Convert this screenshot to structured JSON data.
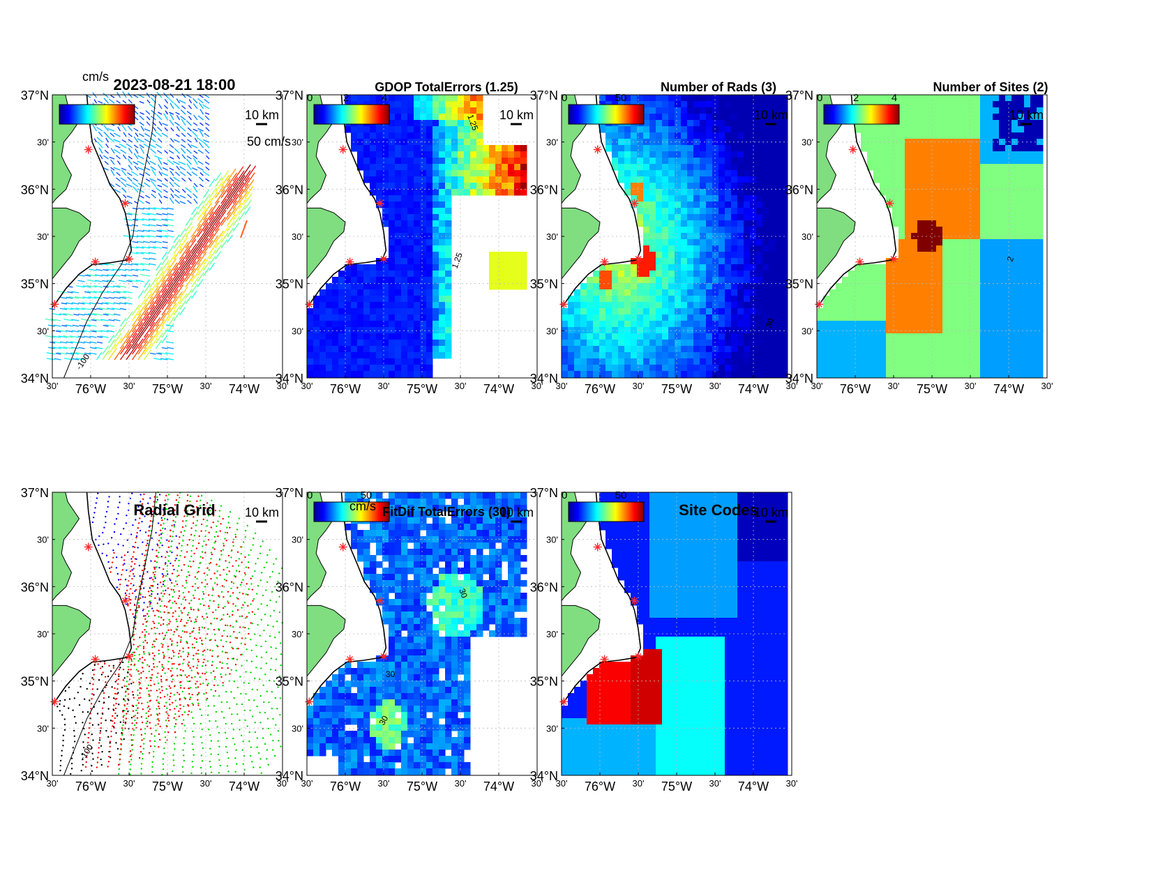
{
  "figure": {
    "timestamp": "2023-08-21 18:00",
    "vector_scale_label": "50 cm/s",
    "scale_bar_label": "10 km",
    "cbar_unit": "cm/s"
  },
  "axes": {
    "lat_ticks": [
      "37°N",
      "30'",
      "36°N",
      "30'",
      "35°N",
      "30'",
      "34°N"
    ],
    "lon_ticks": [
      "30'",
      "76°W",
      "30'",
      "75°W",
      "30'",
      "74°W",
      "30'"
    ]
  },
  "colors": {
    "land": "#80dd80",
    "coast": "#000000",
    "site_marker": "#ff2a2a",
    "jet_low": "#00008f",
    "jet_high": "#800000"
  },
  "chart_data": [
    {
      "id": "total-vectors",
      "type": "heatmap",
      "title": "2023-08-21 18:00",
      "colorbar_unit": "cm/s",
      "colormap": "jet",
      "contour_label": "-100",
      "xlim": [
        -76.5,
        -73.5
      ],
      "ylim": [
        34,
        37
      ],
      "site_markers": [
        [
          -76.03,
          36.42
        ],
        [
          -75.55,
          35.85
        ],
        [
          -75.5,
          35.26
        ],
        [
          -75.94,
          35.23
        ],
        [
          -76.47,
          34.78
        ]
      ]
    },
    {
      "id": "gdop",
      "type": "heatmap",
      "title": "GDOP TotalErrors (1.25)",
      "colorbar_ticks": [
        "0",
        "2",
        "4"
      ],
      "contour_label": "1.25",
      "colormap": "jet",
      "xlim": [
        -76.5,
        -73.5
      ],
      "ylim": [
        34,
        37
      ]
    },
    {
      "id": "num-rads",
      "type": "heatmap",
      "title": "Number of Rads (3)",
      "colorbar_ticks": [
        "0",
        "50"
      ],
      "contour_label": "30",
      "colormap": "jet",
      "xlim": [
        -76.5,
        -73.5
      ],
      "ylim": [
        34,
        37
      ]
    },
    {
      "id": "num-sites",
      "type": "heatmap",
      "title": "Number of Sites (2)",
      "colorbar_ticks": [
        "0",
        "2",
        "4"
      ],
      "contour_label": "2",
      "colormap": "jet",
      "xlim": [
        -76.5,
        -73.5
      ],
      "ylim": [
        34,
        37
      ]
    },
    {
      "id": "radial-grid",
      "type": "scatter",
      "title": "Radial Grid",
      "contour_label": "-100",
      "series_colors": [
        "#0000ff",
        "#ff0000",
        "#00d800",
        "#ff0000",
        "#000000"
      ],
      "xlim": [
        -76.5,
        -73.5
      ],
      "ylim": [
        34,
        37
      ]
    },
    {
      "id": "fitdif",
      "type": "heatmap",
      "title": "FitDif TotalErrors (30)",
      "colorbar_unit": "cm/s",
      "colorbar_ticks": [
        "0",
        "50"
      ],
      "contour_label": "30",
      "colormap": "jet",
      "xlim": [
        -76.5,
        -73.5
      ],
      "ylim": [
        34,
        37
      ]
    },
    {
      "id": "site-codes",
      "type": "heatmap",
      "title": "Site Codes",
      "colorbar_ticks": [
        "0",
        "50"
      ],
      "colormap": "jet",
      "xlim": [
        -76.5,
        -73.5
      ],
      "ylim": [
        34,
        37
      ]
    }
  ]
}
